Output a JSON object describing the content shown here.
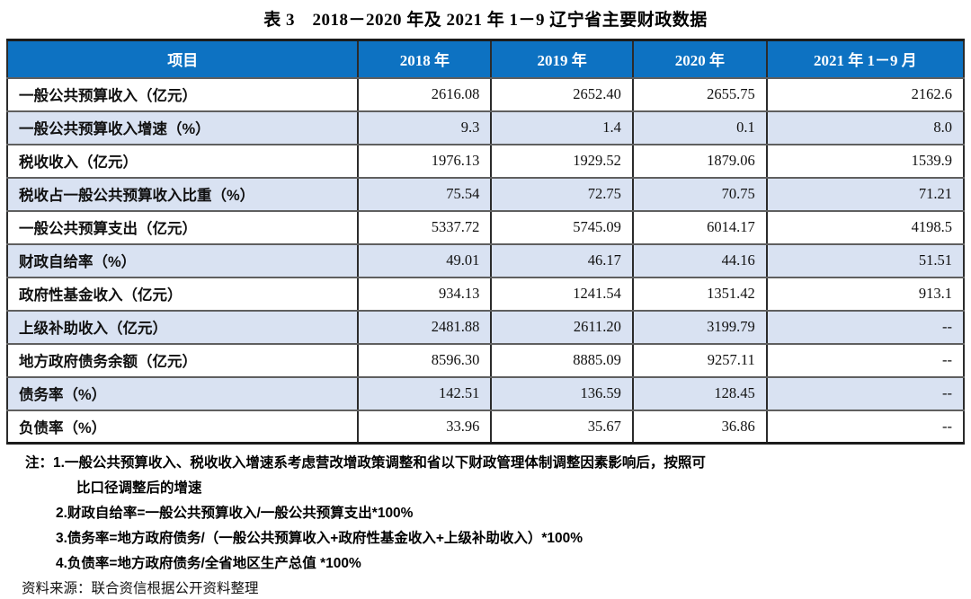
{
  "title": "表 3　2018－2020 年及 2021 年 1－9 辽宁省主要财政数据",
  "colors": {
    "header_bg": "#0d72c2",
    "header_text": "#ffffff",
    "alt_row_bg": "#d9e2f2",
    "row_bg": "#ffffff",
    "border_dark": "#1c1c1c"
  },
  "table": {
    "columns": [
      "项目",
      "2018 年",
      "2019 年",
      "2020 年",
      "2021 年 1－9 月"
    ],
    "rows": [
      {
        "label": "一般公共预算收入（亿元）",
        "values": [
          "2616.08",
          "2652.40",
          "2655.75",
          "2162.6"
        ],
        "shaded": false
      },
      {
        "label": "一般公共预算收入增速（%）",
        "values": [
          "9.3",
          "1.4",
          "0.1",
          "8.0"
        ],
        "shaded": true
      },
      {
        "label": "税收收入（亿元）",
        "values": [
          "1976.13",
          "1929.52",
          "1879.06",
          "1539.9"
        ],
        "shaded": false
      },
      {
        "label": "税收占一般公共预算收入比重（%）",
        "values": [
          "75.54",
          "72.75",
          "70.75",
          "71.21"
        ],
        "shaded": true
      },
      {
        "label": "一般公共预算支出（亿元）",
        "values": [
          "5337.72",
          "5745.09",
          "6014.17",
          "4198.5"
        ],
        "shaded": false
      },
      {
        "label": "财政自给率（%）",
        "values": [
          "49.01",
          "46.17",
          "44.16",
          "51.51"
        ],
        "shaded": true
      },
      {
        "label": "政府性基金收入（亿元）",
        "values": [
          "934.13",
          "1241.54",
          "1351.42",
          "913.1"
        ],
        "shaded": false
      },
      {
        "label": "上级补助收入（亿元）",
        "values": [
          "2481.88",
          "2611.20",
          "3199.79",
          "--"
        ],
        "shaded": true
      },
      {
        "label": "地方政府债务余额（亿元）",
        "values": [
          "8596.30",
          "8885.09",
          "9257.11",
          "--"
        ],
        "shaded": false
      },
      {
        "label": "债务率（%）",
        "values": [
          "142.51",
          "136.59",
          "128.45",
          "--"
        ],
        "shaded": true
      },
      {
        "label": "负债率（%）",
        "values": [
          "33.96",
          "35.67",
          "36.86",
          "--"
        ],
        "shaded": false
      }
    ]
  },
  "notes": [
    "注：1.一般公共预算收入、税收收入增速系考虑营改增政策调整和省以下财政管理体制调整因素影响后，按照可",
    "比口径调整后的增速",
    "2.财政自给率=一般公共预算收入/一般公共预算支出*100%",
    "3.债务率=地方政府债务/（一般公共预算收入+政府性基金收入+上级补助收入）*100%",
    "4.负债率=地方政府债务/全省地区生产总值 *100%"
  ],
  "source": "资料来源：联合资信根据公开资料整理"
}
